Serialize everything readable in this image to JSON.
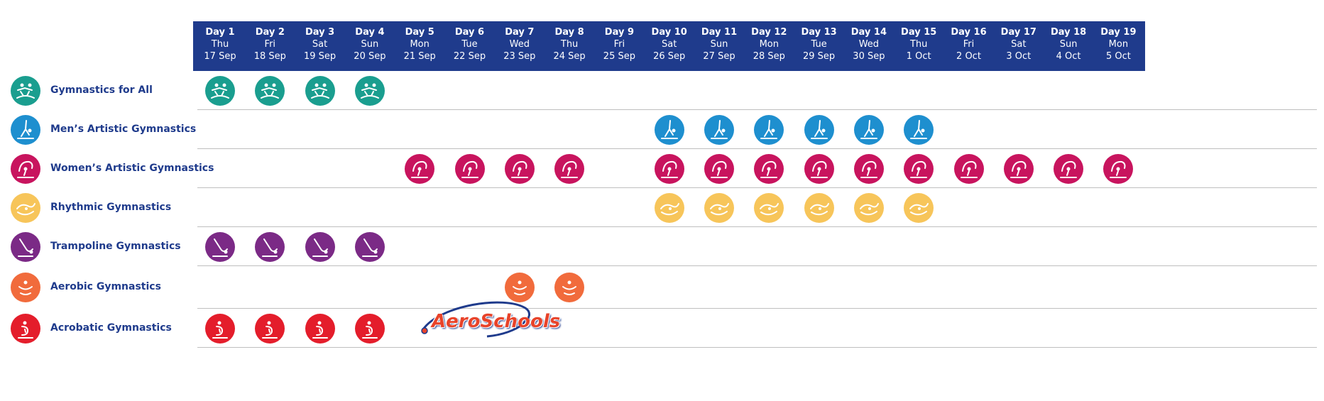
{
  "days": [
    {
      "day": "Day 1",
      "weekday": "Thu",
      "date": "17 Sep"
    },
    {
      "day": "Day 2",
      "weekday": "Fri",
      "date": "18 Sep"
    },
    {
      "day": "Day 3",
      "weekday": "Sat",
      "date": "19 Sep"
    },
    {
      "day": "Day 4",
      "weekday": "Sun",
      "date": "20 Sep"
    },
    {
      "day": "Day 5",
      "weekday": "Mon",
      "date": "21 Sep"
    },
    {
      "day": "Day 6",
      "weekday": "Tue",
      "date": "22 Sep"
    },
    {
      "day": "Day 7",
      "weekday": "Wed",
      "date": "23 Sep"
    },
    {
      "day": "Day 8",
      "weekday": "Thu",
      "date": "24 Sep"
    },
    {
      "day": "Day 9",
      "weekday": "Fri",
      "date": "25 Sep"
    },
    {
      "day": "Day 10",
      "weekday": "Sat",
      "date": "26 Sep"
    },
    {
      "day": "Day 11",
      "weekday": "Sun",
      "date": "27 Sep"
    },
    {
      "day": "Day 12",
      "weekday": "Mon",
      "date": "28 Sep"
    },
    {
      "day": "Day 13",
      "weekday": "Tue",
      "date": "29 Sep"
    },
    {
      "day": "Day 14",
      "weekday": "Wed",
      "date": "30 Sep"
    },
    {
      "day": "Day 15",
      "weekday": "Thu",
      "date": "1 Oct"
    },
    {
      "day": "Day 16",
      "weekday": "Fri",
      "date": "2 Oct"
    },
    {
      "day": "Day 17",
      "weekday": "Sat",
      "date": "3 Oct"
    },
    {
      "day": "Day 18",
      "weekday": "Sun",
      "date": "4 Oct"
    },
    {
      "day": "Day 19",
      "weekday": "Mon",
      "date": "5 Oct"
    }
  ],
  "disciplines": [
    {
      "name": "Gymnastics for All",
      "color": "#1a9e8f",
      "icon": "group-gymnasts-icon",
      "active_days": [
        1,
        2,
        3,
        4
      ]
    },
    {
      "name": "Men’s Artistic Gymnastics",
      "color": "#1e8fcf",
      "icon": "male-gymnast-icon",
      "active_days": [
        10,
        11,
        12,
        13,
        14,
        15
      ]
    },
    {
      "name": "Women’s Artistic Gymnastics",
      "color": "#c8145e",
      "icon": "female-gymnast-icon",
      "active_days": [
        5,
        6,
        7,
        8,
        10,
        11,
        12,
        13,
        14,
        15,
        16,
        17,
        18,
        19
      ]
    },
    {
      "name": "Rhythmic Gymnastics",
      "color": "#f7c55a",
      "icon": "ribbon-gymnast-icon",
      "active_days": [
        10,
        11,
        12,
        13,
        14,
        15
      ]
    },
    {
      "name": "Trampoline Gymnastics",
      "color": "#7b2a86",
      "icon": "trampoline-gymnast-icon",
      "active_days": [
        1,
        2,
        3,
        4
      ]
    },
    {
      "name": "Aerobic Gymnastics",
      "color": "#f16b3c",
      "icon": "aerobic-gymnast-icon",
      "active_days": [
        7,
        8
      ]
    },
    {
      "name": "Acrobatic Gymnastics",
      "color": "#e41d2b",
      "icon": "acrobatic-gymnast-icon",
      "active_days": [
        1,
        2,
        3,
        4
      ]
    }
  ],
  "logo": {
    "text": "AeroSchools",
    "days": [
      5,
      6
    ]
  }
}
